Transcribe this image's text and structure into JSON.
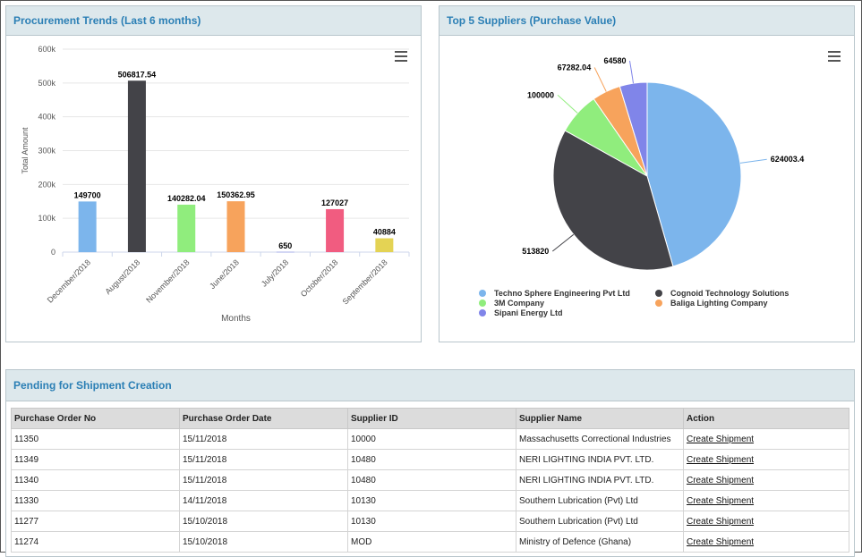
{
  "trends": {
    "title": "Procurement Trends (Last 6 months)",
    "chart_data": {
      "type": "bar",
      "categories": [
        "December/2018",
        "August/2018",
        "November/2018",
        "June/2018",
        "July/2018",
        "October/2018",
        "September/2018"
      ],
      "values": [
        149700,
        506817.54,
        140282.04,
        150362.95,
        650,
        127027,
        40884
      ],
      "data_labels": [
        "149700",
        "506817.54",
        "140282.04",
        "150362.95",
        "650",
        "127027",
        "40884"
      ],
      "colors": [
        "#7cb5ec",
        "#434348",
        "#90ed7d",
        "#f7a35c",
        "#8085e9",
        "#f15c80",
        "#e4d354"
      ],
      "ylabel": "Total Amount",
      "xlabel": "Months",
      "ylim": [
        0,
        600000
      ],
      "yticks": [
        0,
        100000,
        200000,
        300000,
        400000,
        500000,
        600000
      ],
      "ytick_labels": [
        "0",
        "100k",
        "200k",
        "300k",
        "400k",
        "500k",
        "600k"
      ],
      "grid": true
    }
  },
  "suppliers": {
    "title": "Top 5 Suppliers (Purchase Value)",
    "chart_data": {
      "type": "pie",
      "labels": [
        "Techno Sphere Engineering Pvt Ltd",
        "Cognoid Technology Solutions",
        "3M Company",
        "Baliga Lighting Company",
        "Sipani Energy Ltd"
      ],
      "values": [
        624003.4,
        513820,
        100000,
        67282.04,
        64580
      ],
      "data_labels": [
        "624003.4",
        "513820",
        "100000",
        "67282.04",
        "64580"
      ],
      "colors": [
        "#7cb5ec",
        "#434348",
        "#90ed7d",
        "#f7a35c",
        "#8085e9"
      ],
      "legend_position": "bottom"
    }
  },
  "shipments": {
    "title": "Pending for Shipment Creation",
    "columns": [
      "Purchase Order No",
      "Purchase Order Date",
      "Supplier ID",
      "Supplier Name",
      "Action"
    ],
    "rows": [
      {
        "po": "11350",
        "date": "15/11/2018",
        "sid": "10000",
        "name": "Massachusetts Correctional Industries",
        "action": "Create Shipment"
      },
      {
        "po": "11349",
        "date": "15/11/2018",
        "sid": "10480",
        "name": "NERI LIGHTING INDIA PVT. LTD.",
        "action": "Create Shipment"
      },
      {
        "po": "11340",
        "date": "15/11/2018",
        "sid": "10480",
        "name": "NERI LIGHTING INDIA PVT. LTD.",
        "action": "Create Shipment"
      },
      {
        "po": "11330",
        "date": "14/11/2018",
        "sid": "10130",
        "name": "Southern Lubrication (Pvt) Ltd",
        "action": "Create Shipment"
      },
      {
        "po": "11277",
        "date": "15/10/2018",
        "sid": "10130",
        "name": "Southern Lubrication (Pvt) Ltd",
        "action": "Create Shipment"
      },
      {
        "po": "11274",
        "date": "15/10/2018",
        "sid": "MOD",
        "name": "Ministry of Defence (Ghana)",
        "action": "Create Shipment"
      }
    ]
  }
}
